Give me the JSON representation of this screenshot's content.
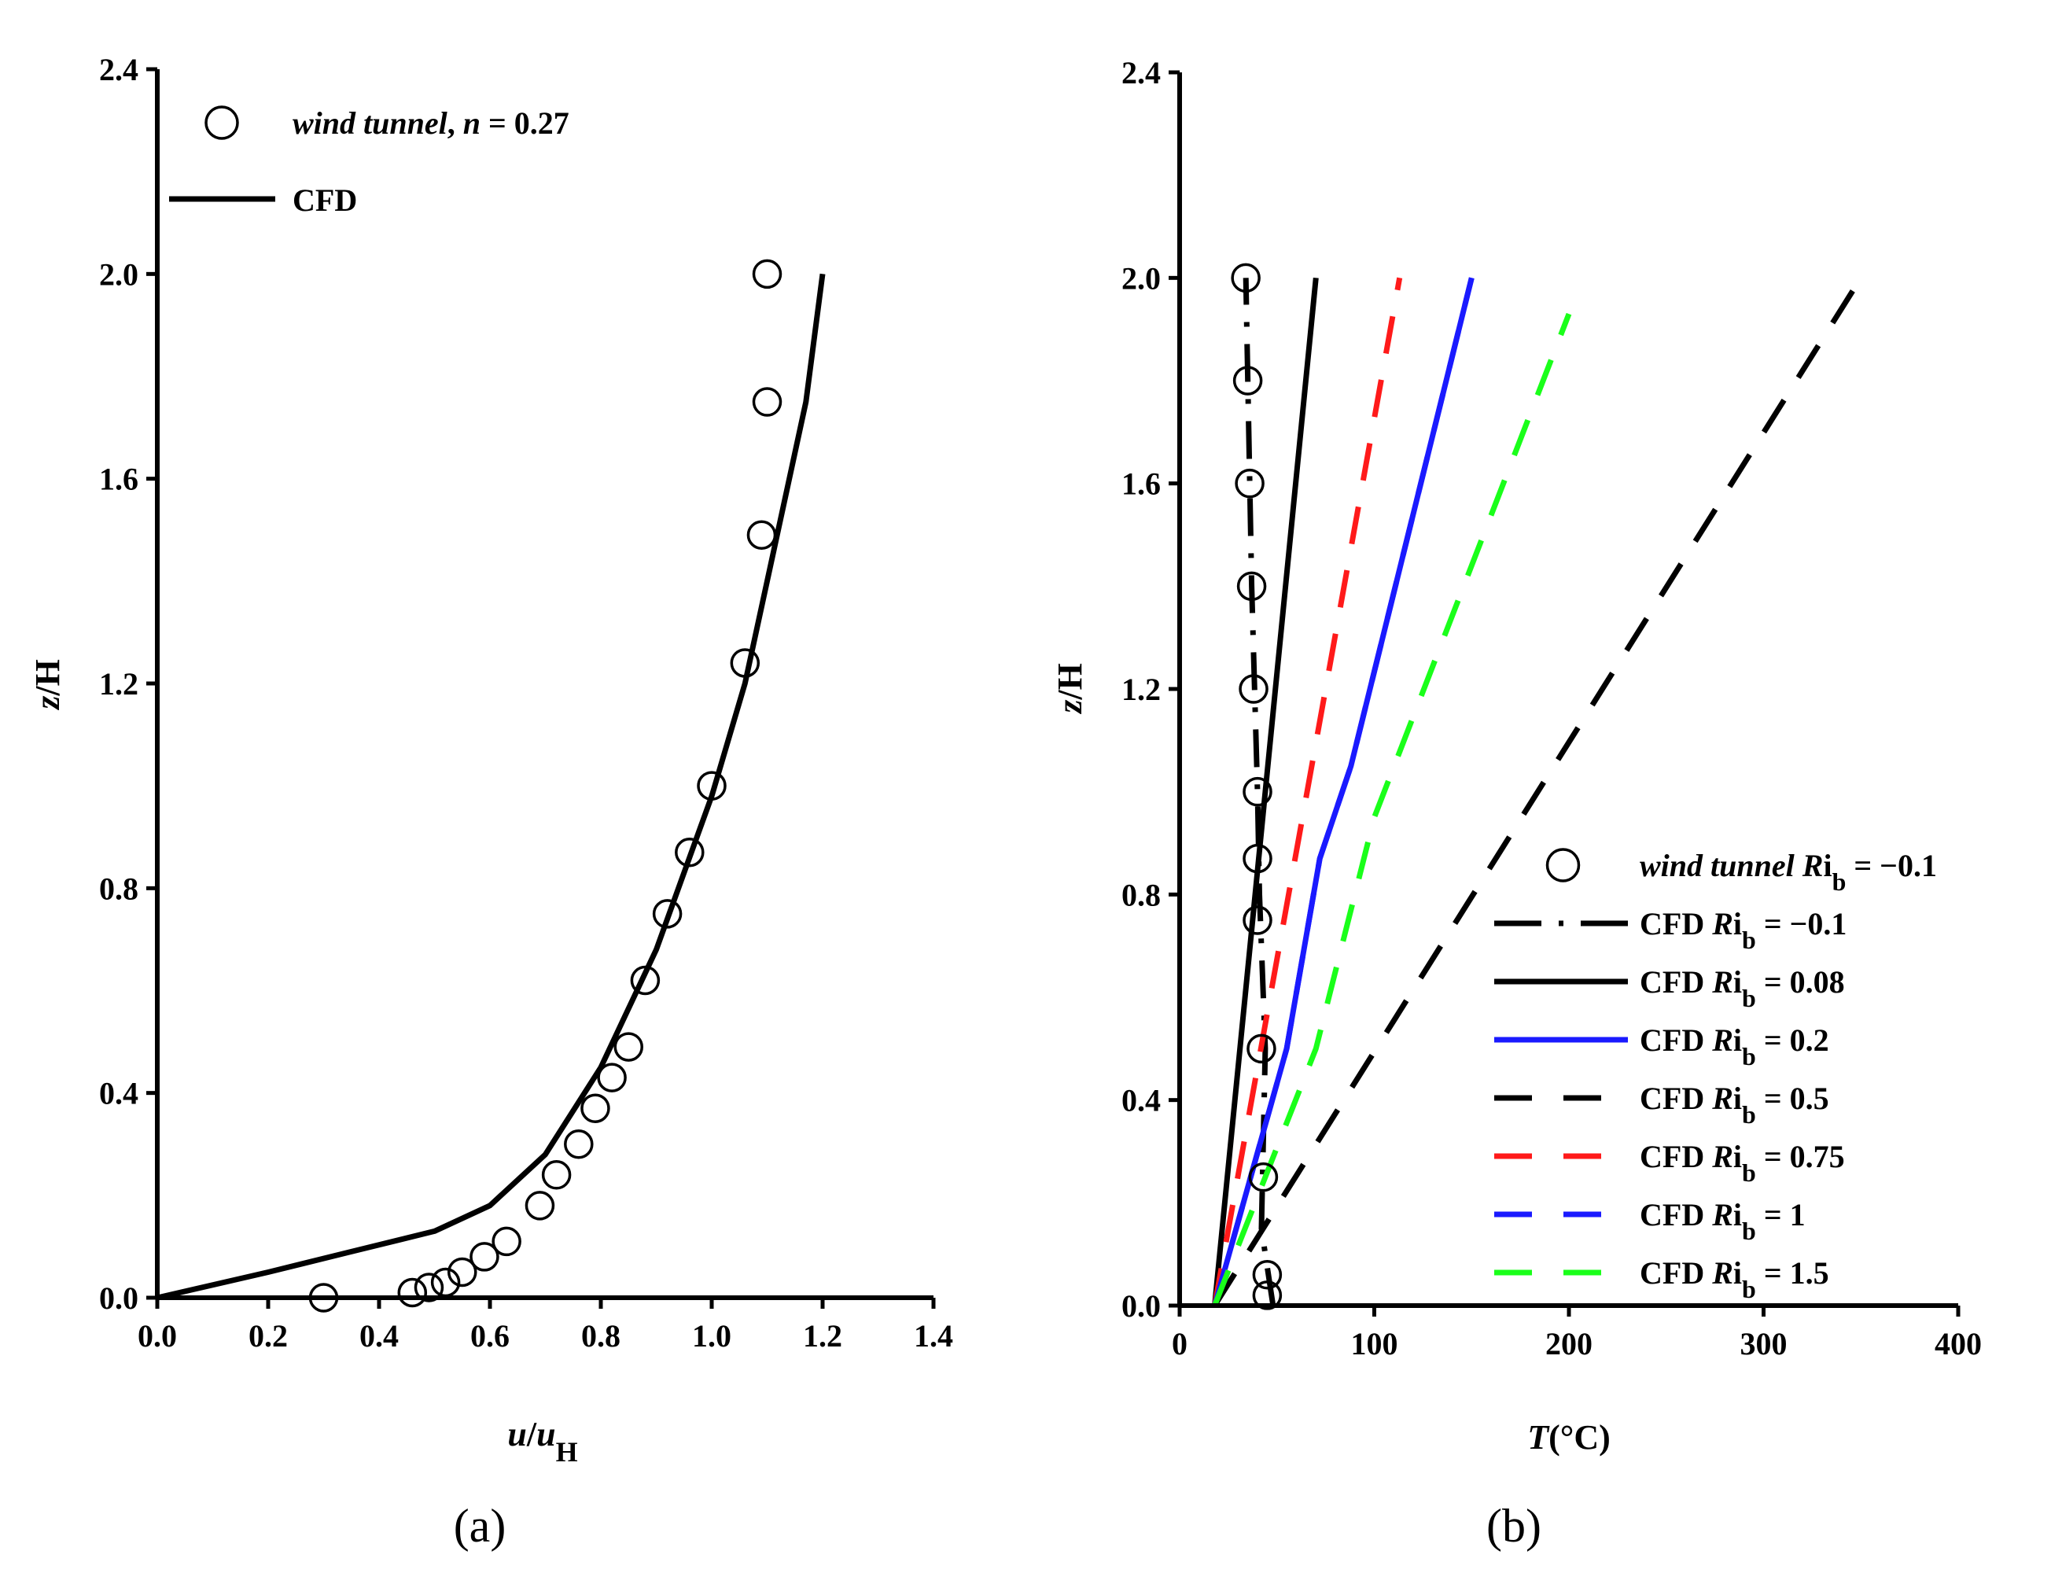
{
  "chart_data": [
    {
      "type": "line",
      "panel_label": "(a)",
      "xlabel": {
        "italic": "u",
        "sep": "/",
        "italic2": "u",
        "sub": "H"
      },
      "ylabel": {
        "italic": "z",
        "rest": "/H"
      },
      "xlim": [
        0.0,
        1.4
      ],
      "ylim": [
        0.0,
        2.4
      ],
      "xticks": [
        "0.0",
        "0.2",
        "0.4",
        "0.6",
        "0.8",
        "1.0",
        "1.2",
        "1.4"
      ],
      "yticks": [
        "0.0",
        "0.4",
        "0.8",
        "1.2",
        "1.6",
        "2.0",
        "2.4"
      ],
      "legend": [
        {
          "name": "wind tunnel",
          "sep": ", ",
          "param": "n",
          "value": " = 0.27"
        },
        {
          "name": "CFD"
        }
      ],
      "series": [
        {
          "name": "wind tunnel, n = 0.27",
          "marker": "circle",
          "points": [
            [
              0.3,
              0.0
            ],
            [
              0.46,
              0.01
            ],
            [
              0.49,
              0.02
            ],
            [
              0.52,
              0.03
            ],
            [
              0.55,
              0.05
            ],
            [
              0.59,
              0.08
            ],
            [
              0.63,
              0.11
            ],
            [
              0.69,
              0.18
            ],
            [
              0.72,
              0.24
            ],
            [
              0.76,
              0.3
            ],
            [
              0.79,
              0.37
            ],
            [
              0.82,
              0.43
            ],
            [
              0.85,
              0.49
            ],
            [
              0.88,
              0.62
            ],
            [
              0.92,
              0.75
            ],
            [
              0.96,
              0.87
            ],
            [
              1.0,
              1.0
            ],
            [
              1.06,
              1.24
            ],
            [
              1.09,
              1.49
            ],
            [
              1.1,
              1.75
            ],
            [
              1.1,
              2.0
            ]
          ]
        },
        {
          "name": "CFD",
          "style": "solid",
          "color": "#000000",
          "points": [
            [
              0.0,
              0.0
            ],
            [
              0.2,
              0.05
            ],
            [
              0.35,
              0.09
            ],
            [
              0.5,
              0.13
            ],
            [
              0.6,
              0.18
            ],
            [
              0.7,
              0.28
            ],
            [
              0.8,
              0.45
            ],
            [
              0.9,
              0.68
            ],
            [
              1.0,
              0.98
            ],
            [
              1.06,
              1.2
            ],
            [
              1.12,
              1.5
            ],
            [
              1.17,
              1.75
            ],
            [
              1.2,
              2.0
            ]
          ]
        }
      ]
    },
    {
      "type": "line",
      "panel_label": "(b)",
      "xlabel": {
        "italic": "T",
        "rest": "(°C)"
      },
      "ylabel": {
        "italic": "z",
        "rest": "/H"
      },
      "xlim": [
        0,
        400
      ],
      "ylim": [
        0.0,
        2.4
      ],
      "xticks": [
        "0",
        "100",
        "200",
        "300",
        "400"
      ],
      "yticks": [
        "0.0",
        "0.4",
        "0.8",
        "1.2",
        "1.6",
        "2.0",
        "2.4"
      ],
      "legend": [
        {
          "prefix": "wind tunnel ",
          "italic": "R",
          "plain": "i",
          "sub": "b",
          "value": " = −0.1"
        },
        {
          "prefix": "CFD ",
          "italic": "R",
          "plain": "i",
          "sub": "b",
          "value": " = −0.1"
        },
        {
          "prefix": "CFD ",
          "italic": "R",
          "plain": "i",
          "sub": "b",
          "value": " = 0.08"
        },
        {
          "prefix": "CFD ",
          "italic": "R",
          "plain": "i",
          "sub": "b",
          "value": " = 0.2"
        },
        {
          "prefix": "CFD ",
          "italic": "R",
          "plain": "i",
          "sub": "b",
          "value": " = 0.5"
        },
        {
          "prefix": "CFD ",
          "italic": "R",
          "plain": "i",
          "sub": "b",
          "value": " = 0.75"
        },
        {
          "prefix": "CFD ",
          "italic": "R",
          "plain": "i",
          "sub": "b",
          "value": " = 1"
        },
        {
          "prefix": "CFD ",
          "italic": "R",
          "plain": "i",
          "sub": "b",
          "value": " = 1.5"
        }
      ],
      "series": [
        {
          "name": "wind tunnel Rib = −0.1",
          "marker": "circle",
          "points": [
            [
              45,
              0.02
            ],
            [
              45,
              0.06
            ],
            [
              43,
              0.25
            ],
            [
              42,
              0.5
            ],
            [
              40,
              0.75
            ],
            [
              40,
              0.87
            ],
            [
              40,
              1.0
            ],
            [
              38,
              1.2
            ],
            [
              37,
              1.4
            ],
            [
              36,
              1.6
            ],
            [
              35,
              1.8
            ],
            [
              34,
              2.0
            ]
          ]
        },
        {
          "name": "CFD Rib = −0.1",
          "style": "dashdot",
          "color": "#000000",
          "points": [
            [
              48,
              0.0
            ],
            [
              42,
              0.15
            ],
            [
              44,
              0.5
            ],
            [
              41,
              0.8
            ],
            [
              40,
              1.0
            ],
            [
              37,
              1.4
            ],
            [
              34,
              2.0
            ]
          ]
        },
        {
          "name": "CFD Rib = 0.08",
          "style": "solid",
          "color": "#000000",
          "points": [
            [
              18,
              0.0
            ],
            [
              70,
              2.0
            ]
          ]
        },
        {
          "name": "CFD Rib = 0.2",
          "style": "solid",
          "color": "#1a1aff",
          "points": [
            [
              18,
              0.0
            ],
            [
              55,
              0.5
            ],
            [
              72,
              0.87
            ],
            [
              88,
              1.05
            ],
            [
              150,
              2.0
            ]
          ]
        },
        {
          "name": "CFD Rib = 0.5",
          "style": "dashed",
          "color": "#000000",
          "points": [
            [
              18,
              0.0
            ],
            [
              350,
              2.0
            ]
          ]
        },
        {
          "name": "CFD Rib = 0.75",
          "style": "dashed",
          "color": "#ff1a1a",
          "points": [
            [
              18,
              0.0
            ],
            [
              113,
              2.0
            ]
          ]
        },
        {
          "name": "CFD Rib = 1",
          "style": "dashed",
          "color": "#1a1aff",
          "points": [
            [
              18,
              0.0
            ],
            [
              55,
              0.5
            ],
            [
              72,
              0.87
            ],
            [
              88,
              1.05
            ],
            [
              150,
              2.0
            ]
          ]
        },
        {
          "name": "CFD Rib = 1.5",
          "style": "dashed",
          "color": "#1aff1a",
          "points": [
            [
              18,
              0.0
            ],
            [
              70,
              0.5
            ],
            [
              100,
              0.95
            ],
            [
              200,
              1.93
            ]
          ]
        }
      ]
    }
  ]
}
